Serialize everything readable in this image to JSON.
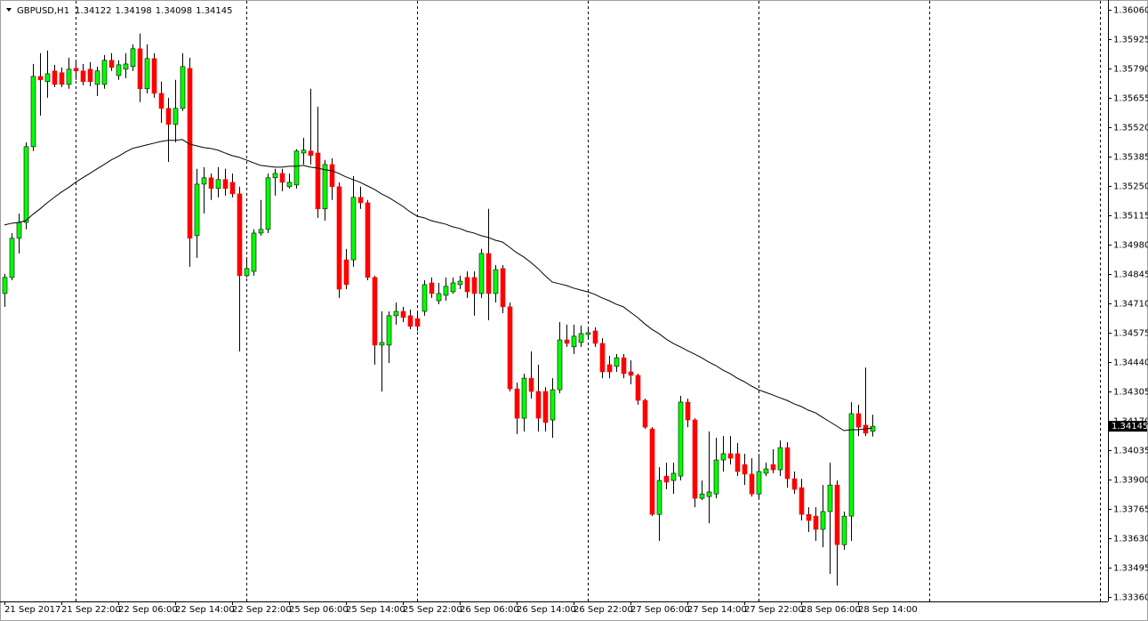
{
  "chart_data": {
    "type": "candlestick",
    "symbol": "GBPUSD,H1",
    "categories": [
      "21 Sep 2017",
      null,
      null,
      null,
      null,
      null,
      null,
      null,
      "21 Sep 22:00",
      null,
      null,
      null,
      null,
      null,
      null,
      null,
      "22 Sep 06:00",
      null,
      null,
      null,
      null,
      null,
      null,
      null,
      "22 Sep 14:00",
      null,
      null,
      null,
      null,
      null,
      null,
      null,
      "22 Sep 22:00",
      null,
      null,
      null,
      null,
      null,
      null,
      null,
      "25 Sep 06:00",
      null,
      null,
      null,
      null,
      null,
      null,
      null,
      "25 Sep 14:00",
      null,
      null,
      null,
      null,
      null,
      null,
      null,
      "25 Sep 22:00",
      null,
      null,
      null,
      null,
      null,
      null,
      null,
      "26 Sep 06:00",
      null,
      null,
      null,
      null,
      null,
      null,
      null,
      "26 Sep 14:00",
      null,
      null,
      null,
      null,
      null,
      null,
      null,
      "26 Sep 22:00",
      null,
      null,
      null,
      null,
      null,
      null,
      null,
      "27 Sep 06:00",
      null,
      null,
      null,
      null,
      null,
      null,
      null,
      "27 Sep 14:00",
      null,
      null,
      null,
      null,
      null,
      null,
      null,
      "27 Sep 22:00",
      null,
      null,
      null,
      null,
      null,
      null,
      null,
      "28 Sep 06:00",
      null,
      null,
      null,
      null,
      null,
      null,
      null,
      "28 Sep 14:00",
      null,
      null
    ],
    "open": [
      1.34755,
      1.34829,
      1.35009,
      1.35082,
      1.3543,
      1.35753,
      1.35729,
      1.35778,
      1.3577,
      1.35716,
      1.3579,
      1.35778,
      1.35786,
      1.35716,
      1.35716,
      1.35827,
      1.35757,
      1.35786,
      1.35798,
      1.3588,
      1.35696,
      1.35835,
      1.35675,
      1.35606,
      1.35532,
      1.35606,
      1.3579,
      1.35021,
      1.35258,
      1.35287,
      1.35238,
      1.35279,
      1.35266,
      1.35213,
      1.34837,
      1.34857,
      1.35033,
      1.3505,
      1.35287,
      1.35307,
      1.35246,
      1.35254,
      1.35401,
      1.3541,
      1.35401,
      1.35144,
      1.35348,
      1.35246,
      1.3491,
      1.3491,
      1.35197,
      1.35172,
      1.34829,
      1.34518,
      1.34518,
      1.34653,
      1.34673,
      1.34653,
      1.3464,
      1.34673,
      1.34804,
      1.34722,
      1.34747,
      1.34763,
      1.34796,
      1.34829,
      1.34829,
      1.34755,
      1.34939,
      1.34755,
      1.3487,
      1.34694,
      1.34317,
      1.34182,
      1.34366,
      1.34305,
      1.34305,
      1.34174,
      1.34313,
      1.34542,
      1.3451,
      1.3453,
      1.34567,
      1.34583,
      1.34526,
      1.34428,
      1.3442,
      1.3446,
      1.34395,
      1.34379,
      1.34264,
      1.34133,
      1.3374,
      1.33916,
      1.33896,
      1.33916,
      1.34256,
      1.34174,
      1.33814,
      1.33822,
      1.33834,
      1.3399,
      1.34019,
      1.34019,
      1.33969,
      1.33925,
      1.33834,
      1.33929,
      1.33969,
      1.33945,
      1.34047,
      1.33904,
      1.33863,
      1.3374,
      1.33732,
      1.33671,
      1.33753,
      1.33875,
      1.33601,
      1.33732,
      1.34203,
      1.3415,
      1.34122
    ],
    "high": [
      1.34845,
      1.35033,
      1.35123,
      1.3545,
      1.3581,
      1.3586,
      1.35872,
      1.35806,
      1.35794,
      1.35839,
      1.35827,
      1.3581,
      1.35819,
      1.35798,
      1.35851,
      1.3586,
      1.35827,
      1.3586,
      1.359,
      1.3595,
      1.359,
      1.3586,
      1.35729,
      1.35655,
      1.35737,
      1.3586,
      1.35839,
      1.35328,
      1.35336,
      1.35307,
      1.35336,
      1.35328,
      1.35307,
      1.35246,
      1.3491,
      1.3505,
      1.35185,
      1.35307,
      1.35328,
      1.35328,
      1.35307,
      1.35418,
      1.35471,
      1.35696,
      1.35614,
      1.35369,
      1.35377,
      1.35266,
      1.3496,
      1.35295,
      1.35246,
      1.35185,
      1.34837,
      1.34673,
      1.34673,
      1.34714,
      1.34694,
      1.34681,
      1.34673,
      1.34816,
      1.34829,
      1.34804,
      1.34829,
      1.34829,
      1.34837,
      1.34857,
      1.34857,
      1.3496,
      1.35144,
      1.34886,
      1.34886,
      1.34714,
      1.34346,
      1.34387,
      1.34489,
      1.34428,
      1.34325,
      1.34366,
      1.34624,
      1.34612,
      1.34612,
      1.34608,
      1.346,
      1.346,
      1.3455,
      1.34469,
      1.34477,
      1.34477,
      1.34448,
      1.34387,
      1.34272,
      1.34141,
      1.33957,
      1.33978,
      1.33978,
      1.34285,
      1.34272,
      1.34182,
      1.33896,
      1.34121,
      1.34092,
      1.341,
      1.341,
      1.34068,
      1.34019,
      1.33998,
      1.34019,
      1.33978,
      1.34039,
      1.3408,
      1.34072,
      1.33937,
      1.33904,
      1.33773,
      1.33773,
      1.33875,
      1.33978,
      1.33896,
      1.33753,
      1.34256,
      1.34244,
      1.34415,
      1.34198
    ],
    "low": [
      1.34694,
      1.34816,
      1.34939,
      1.3505,
      1.3541,
      1.35573,
      1.35655,
      1.35704,
      1.35704,
      1.35696,
      1.35737,
      1.35712,
      1.35708,
      1.35663,
      1.35696,
      1.35778,
      1.35737,
      1.35745,
      1.35778,
      1.35635,
      1.35675,
      1.35655,
      1.3554,
      1.3536,
      1.3545,
      1.35594,
      1.34878,
      1.34919,
      1.35123,
      1.35185,
      1.35197,
      1.35205,
      1.35197,
      1.34489,
      1.34829,
      1.34837,
      1.35021,
      1.35033,
      1.35205,
      1.35225,
      1.35238,
      1.35238,
      1.35348,
      1.35348,
      1.35103,
      1.3509,
      1.35185,
      1.34735,
      1.34775,
      1.34878,
      1.35144,
      1.34816,
      1.34428,
      1.34305,
      1.34436,
      1.34612,
      1.34624,
      1.34591,
      1.34583,
      1.34653,
      1.34735,
      1.34706,
      1.34722,
      1.34755,
      1.34775,
      1.34735,
      1.34653,
      1.34735,
      1.34632,
      1.34714,
      1.34665,
      1.34305,
      1.34109,
      1.34121,
      1.34272,
      1.34121,
      1.34121,
      1.34092,
      1.34297,
      1.3451,
      1.34477,
      1.3451,
      1.34542,
      1.3451,
      1.34366,
      1.34366,
      1.34395,
      1.34366,
      1.34338,
      1.34244,
      1.34133,
      1.33732,
      1.33618,
      1.33855,
      1.33834,
      1.33896,
      1.34141,
      1.33773,
      1.33806,
      1.33699,
      1.33814,
      1.33937,
      1.33969,
      1.33916,
      1.33875,
      1.33822,
      1.33814,
      1.33916,
      1.33929,
      1.33916,
      1.33863,
      1.33834,
      1.33712,
      1.33659,
      1.33618,
      1.33589,
      1.33466,
      1.33413,
      1.33577,
      1.33618,
      1.341,
      1.341,
      1.34098
    ],
    "close": [
      1.34829,
      1.35009,
      1.35082,
      1.3543,
      1.35753,
      1.35737,
      1.35765,
      1.35716,
      1.35716,
      1.35786,
      1.35778,
      1.35729,
      1.35729,
      1.35778,
      1.35827,
      1.35794,
      1.35806,
      1.3581,
      1.3588,
      1.35696,
      1.35835,
      1.35675,
      1.35606,
      1.35532,
      1.35606,
      1.35798,
      1.35009,
      1.35258,
      1.35287,
      1.35238,
      1.35279,
      1.35238,
      1.35213,
      1.34837,
      1.3487,
      1.35033,
      1.3505,
      1.35287,
      1.35307,
      1.35266,
      1.35266,
      1.3541,
      1.35414,
      1.35389,
      1.35144,
      1.35348,
      1.35246,
      1.34775,
      1.34796,
      1.35197,
      1.35172,
      1.34829,
      1.34518,
      1.3453,
      1.34653,
      1.34673,
      1.34645,
      1.34604,
      1.34604,
      1.34796,
      1.34755,
      1.34755,
      1.34788,
      1.34804,
      1.34812,
      1.34763,
      1.34755,
      1.34939,
      1.34755,
      1.34865,
      1.34694,
      1.34317,
      1.34182,
      1.34366,
      1.34305,
      1.34182,
      1.34162,
      1.34313,
      1.34542,
      1.34526,
      1.34559,
      1.34571,
      1.34575,
      1.34526,
      1.34395,
      1.34395,
      1.3446,
      1.34387,
      1.34379,
      1.34264,
      1.34141,
      1.3374,
      1.33896,
      1.33888,
      1.33929,
      1.34256,
      1.34174,
      1.33814,
      1.33834,
      1.33843,
      1.3399,
      1.34019,
      1.33998,
      1.33937,
      1.33925,
      1.33834,
      1.33937,
      1.33949,
      1.33945,
      1.34047,
      1.33904,
      1.33855,
      1.3374,
      1.33712,
      1.33671,
      1.33753,
      1.33875,
      1.33601,
      1.33732,
      1.34203,
      1.34141,
      1.34113,
      1.34145
    ],
    "up_color": "#00ff00",
    "down_color": "#ff0000",
    "series": [
      {
        "color": "#000000",
        "values": [
          1.3507,
          1.35078,
          1.35082,
          1.3509,
          1.35119,
          1.35144,
          1.35172,
          1.35197,
          1.35221,
          1.35242,
          1.35266,
          1.35287,
          1.35307,
          1.35328,
          1.35348,
          1.35369,
          1.35385,
          1.35405,
          1.35422,
          1.3543,
          1.35438,
          1.35446,
          1.35454,
          1.35459,
          1.35459,
          1.35463,
          1.35442,
          1.35434,
          1.35426,
          1.35422,
          1.35414,
          1.35401,
          1.35389,
          1.35381,
          1.35369,
          1.35356,
          1.35344,
          1.3534,
          1.35336,
          1.35336,
          1.3534,
          1.3534,
          1.35344,
          1.35336,
          1.35332,
          1.35324,
          1.3532,
          1.35307,
          1.35291,
          1.35279,
          1.35266,
          1.3525,
          1.35234,
          1.35213,
          1.35197,
          1.35176,
          1.35156,
          1.35131,
          1.35111,
          1.35103,
          1.3509,
          1.35082,
          1.35074,
          1.35062,
          1.35054,
          1.35041,
          1.35033,
          1.35021,
          1.35013,
          1.35,
          1.34992,
          1.34968,
          1.34943,
          1.34923,
          1.34898,
          1.3487,
          1.34837,
          1.34808,
          1.348,
          1.34792,
          1.3478,
          1.34771,
          1.34763,
          1.34751,
          1.34735,
          1.34722,
          1.34706,
          1.34694,
          1.34669,
          1.34645,
          1.34616,
          1.34591,
          1.34571,
          1.34546,
          1.34526,
          1.3451,
          1.34493,
          1.34477,
          1.3446,
          1.3444,
          1.34424,
          1.34403,
          1.34387,
          1.34366,
          1.3435,
          1.3433,
          1.34313,
          1.34301,
          1.34289,
          1.34276,
          1.34264,
          1.34248,
          1.34236,
          1.34219,
          1.34207,
          1.34186,
          1.34166,
          1.34146,
          1.34125,
          1.34129,
          1.34129,
          1.34133,
          1.34137
        ]
      }
    ],
    "ylim": [
      1.3334,
      1.361
    ],
    "yticks": [
      {
        "value": 1.3606,
        "label": "1.36060"
      },
      {
        "value": 1.35925,
        "label": "1.35925"
      },
      {
        "value": 1.3579,
        "label": "1.35790"
      },
      {
        "value": 1.35655,
        "label": "1.35655"
      },
      {
        "value": 1.3552,
        "label": "1.35520"
      },
      {
        "value": 1.35385,
        "label": "1.35385"
      },
      {
        "value": 1.3525,
        "label": "1.35250"
      },
      {
        "value": 1.35115,
        "label": "1.35115"
      },
      {
        "value": 1.3498,
        "label": "1.34980"
      },
      {
        "value": 1.34845,
        "label": "1.34845"
      },
      {
        "value": 1.3471,
        "label": "1.34710"
      },
      {
        "value": 1.34575,
        "label": "1.34575"
      },
      {
        "value": 1.3444,
        "label": "1.34440"
      },
      {
        "value": 1.34305,
        "label": "1.34305"
      },
      {
        "value": 1.3417,
        "label": "1.34170"
      },
      {
        "value": 1.34035,
        "label": "1.34035"
      },
      {
        "value": 1.339,
        "label": "1.33900"
      },
      {
        "value": 1.33765,
        "label": "1.33765"
      },
      {
        "value": 1.3363,
        "label": "1.33630"
      },
      {
        "value": 1.33495,
        "label": "1.33495"
      },
      {
        "value": 1.3336,
        "label": "1.33360"
      }
    ],
    "grid": false
  }
}
